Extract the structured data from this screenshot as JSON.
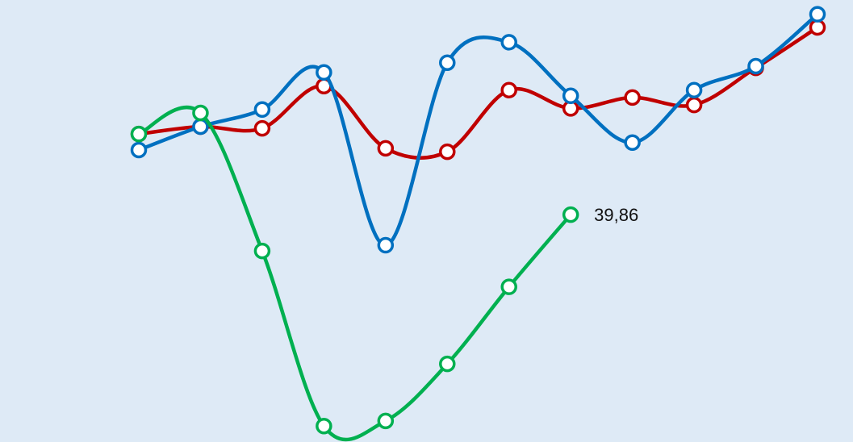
{
  "chart_data": {
    "type": "line",
    "categories": [
      null,
      null,
      null,
      null,
      null,
      null,
      null,
      null,
      null,
      null,
      null,
      null
    ],
    "ylim": [
      0,
      77.5
    ],
    "smooth": true,
    "series": [
      {
        "color": "#c00000",
        "values": [
          54.0,
          55.3,
          55.0,
          62.4,
          51.5,
          50.9,
          61.7,
          58.5,
          60.4,
          59.1,
          65.6,
          72.7
        ]
      },
      {
        "color": "#0070c0",
        "values": [
          51.2,
          55.3,
          58.3,
          64.8,
          34.5,
          66.5,
          70.1,
          60.7,
          52.5,
          61.7,
          65.9,
          75.0
        ]
      },
      {
        "color": "#00b050",
        "values": [
          54.0,
          57.7,
          33.5,
          2.8,
          3.7,
          13.7,
          27.2,
          39.86,
          null,
          null,
          null,
          null
        ],
        "value_labels": [
          null,
          null,
          null,
          null,
          null,
          null,
          null,
          "39,86",
          null,
          null,
          null,
          null
        ]
      }
    ]
  }
}
